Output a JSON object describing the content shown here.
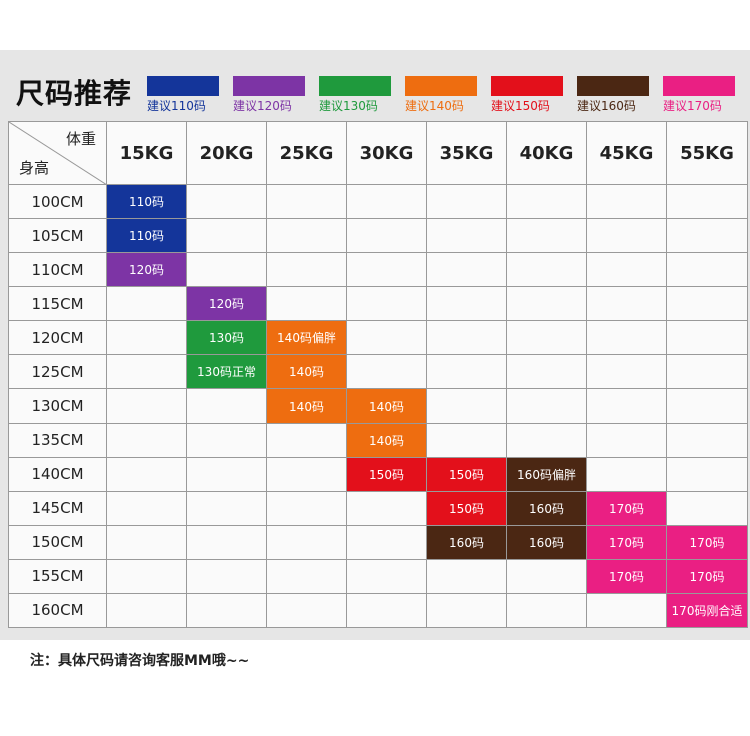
{
  "title": "尺码推荐",
  "legend": [
    {
      "label": "建议110码",
      "color": "#14359a"
    },
    {
      "label": "建议120码",
      "color": "#7d34a5"
    },
    {
      "label": "建议130码",
      "color": "#1f9a3d"
    },
    {
      "label": "建议140码",
      "color": "#ee6d10"
    },
    {
      "label": "建议150码",
      "color": "#e3101b"
    },
    {
      "label": "建议160码",
      "color": "#4b2713"
    },
    {
      "label": "建议170码",
      "color": "#ea1f83"
    }
  ],
  "table": {
    "corner_weight": "体重",
    "corner_height": "身高",
    "weights": [
      "15KG",
      "20KG",
      "25KG",
      "30KG",
      "35KG",
      "40KG",
      "45KG",
      "55KG"
    ],
    "heights": [
      "100CM",
      "105CM",
      "110CM",
      "115CM",
      "120CM",
      "125CM",
      "130CM",
      "135CM",
      "140CM",
      "145CM",
      "150CM",
      "155CM",
      "160CM"
    ],
    "cells": [
      {
        "row": 0,
        "col": 0,
        "text": "110码",
        "size": 0
      },
      {
        "row": 1,
        "col": 0,
        "text": "110码",
        "size": 0
      },
      {
        "row": 2,
        "col": 0,
        "text": "120码",
        "size": 1
      },
      {
        "row": 3,
        "col": 1,
        "text": "120码",
        "size": 1
      },
      {
        "row": 4,
        "col": 1,
        "text": "130码",
        "size": 2
      },
      {
        "row": 4,
        "col": 2,
        "text": "140码偏胖",
        "size": 3
      },
      {
        "row": 5,
        "col": 1,
        "text": "130码正常",
        "size": 2
      },
      {
        "row": 5,
        "col": 2,
        "text": "140码",
        "size": 3
      },
      {
        "row": 6,
        "col": 2,
        "text": "140码",
        "size": 3
      },
      {
        "row": 6,
        "col": 3,
        "text": "140码",
        "size": 3
      },
      {
        "row": 7,
        "col": 3,
        "text": "140码",
        "size": 3
      },
      {
        "row": 8,
        "col": 3,
        "text": "150码",
        "size": 4
      },
      {
        "row": 8,
        "col": 4,
        "text": "150码",
        "size": 4
      },
      {
        "row": 8,
        "col": 5,
        "text": "160码偏胖",
        "size": 5
      },
      {
        "row": 9,
        "col": 4,
        "text": "150码",
        "size": 4
      },
      {
        "row": 9,
        "col": 5,
        "text": "160码",
        "size": 5
      },
      {
        "row": 9,
        "col": 6,
        "text": "170码",
        "size": 6
      },
      {
        "row": 10,
        "col": 4,
        "text": "160码",
        "size": 5
      },
      {
        "row": 10,
        "col": 5,
        "text": "160码",
        "size": 5
      },
      {
        "row": 10,
        "col": 6,
        "text": "170码",
        "size": 6
      },
      {
        "row": 10,
        "col": 7,
        "text": "170码",
        "size": 6
      },
      {
        "row": 11,
        "col": 6,
        "text": "170码",
        "size": 6
      },
      {
        "row": 11,
        "col": 7,
        "text": "170码",
        "size": 6
      },
      {
        "row": 12,
        "col": 7,
        "text": "170码刚合适",
        "size": 6
      }
    ]
  },
  "note": "注：具体尺码请咨询客服MM哦~~"
}
